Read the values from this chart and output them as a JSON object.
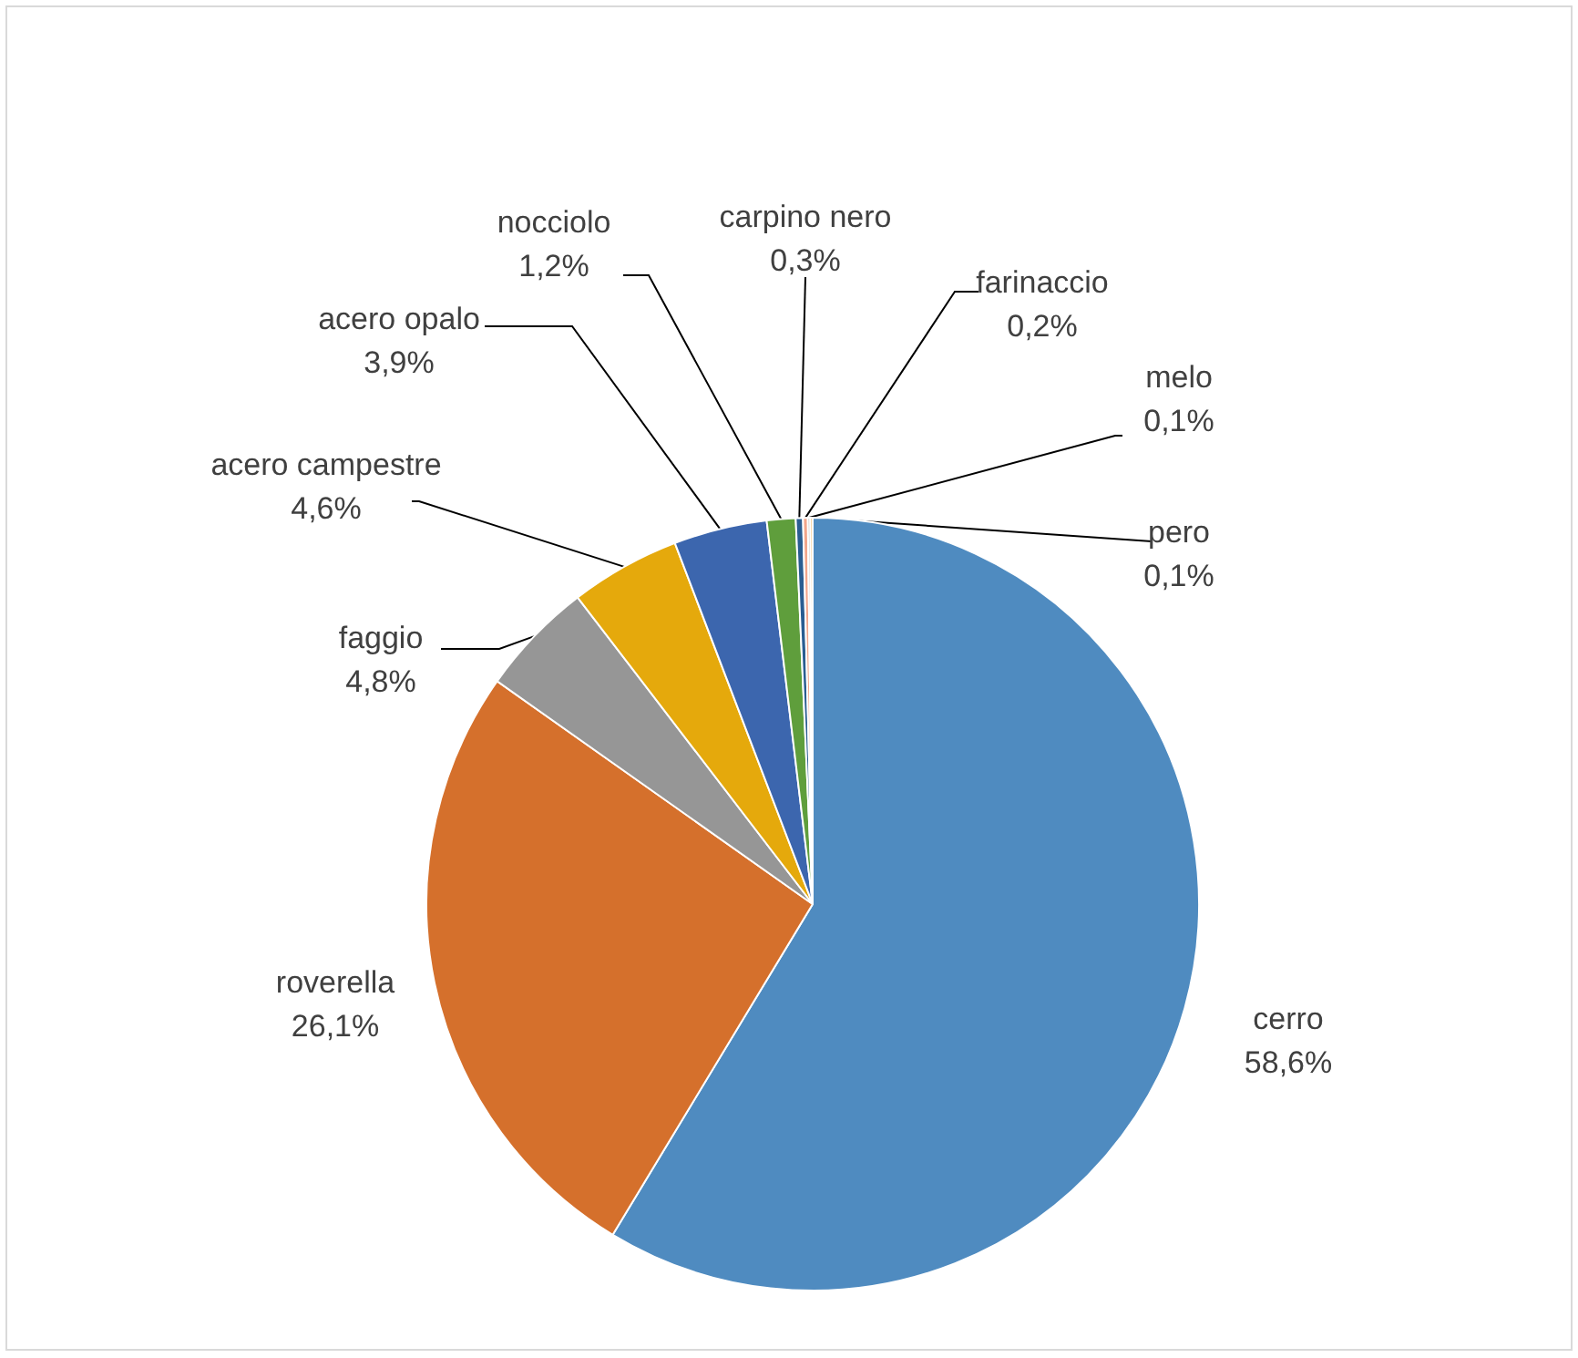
{
  "chart_data": {
    "type": "pie",
    "categories": [
      "cerro",
      "roverella",
      "faggio",
      "acero campestre",
      "acero opalo",
      "nocciolo",
      "carpino nero",
      "farinaccio",
      "melo",
      "pero"
    ],
    "values": [
      58.6,
      26.1,
      4.8,
      4.6,
      3.9,
      1.2,
      0.3,
      0.2,
      0.1,
      0.1
    ],
    "value_labels": [
      "58,6%",
      "26,1%",
      "4,8%",
      "4,6%",
      "3,9%",
      "1,2%",
      "0,3%",
      "0,2%",
      "0,1%",
      "0,1%"
    ],
    "colors": [
      "#4f8bc0",
      "#d5702c",
      "#969696",
      "#e5a90c",
      "#3c66ae",
      "#5f9e3c",
      "#2a5d91",
      "#f2a58a",
      "#9c9c9c",
      "#f4c27a"
    ],
    "legend": false
  }
}
